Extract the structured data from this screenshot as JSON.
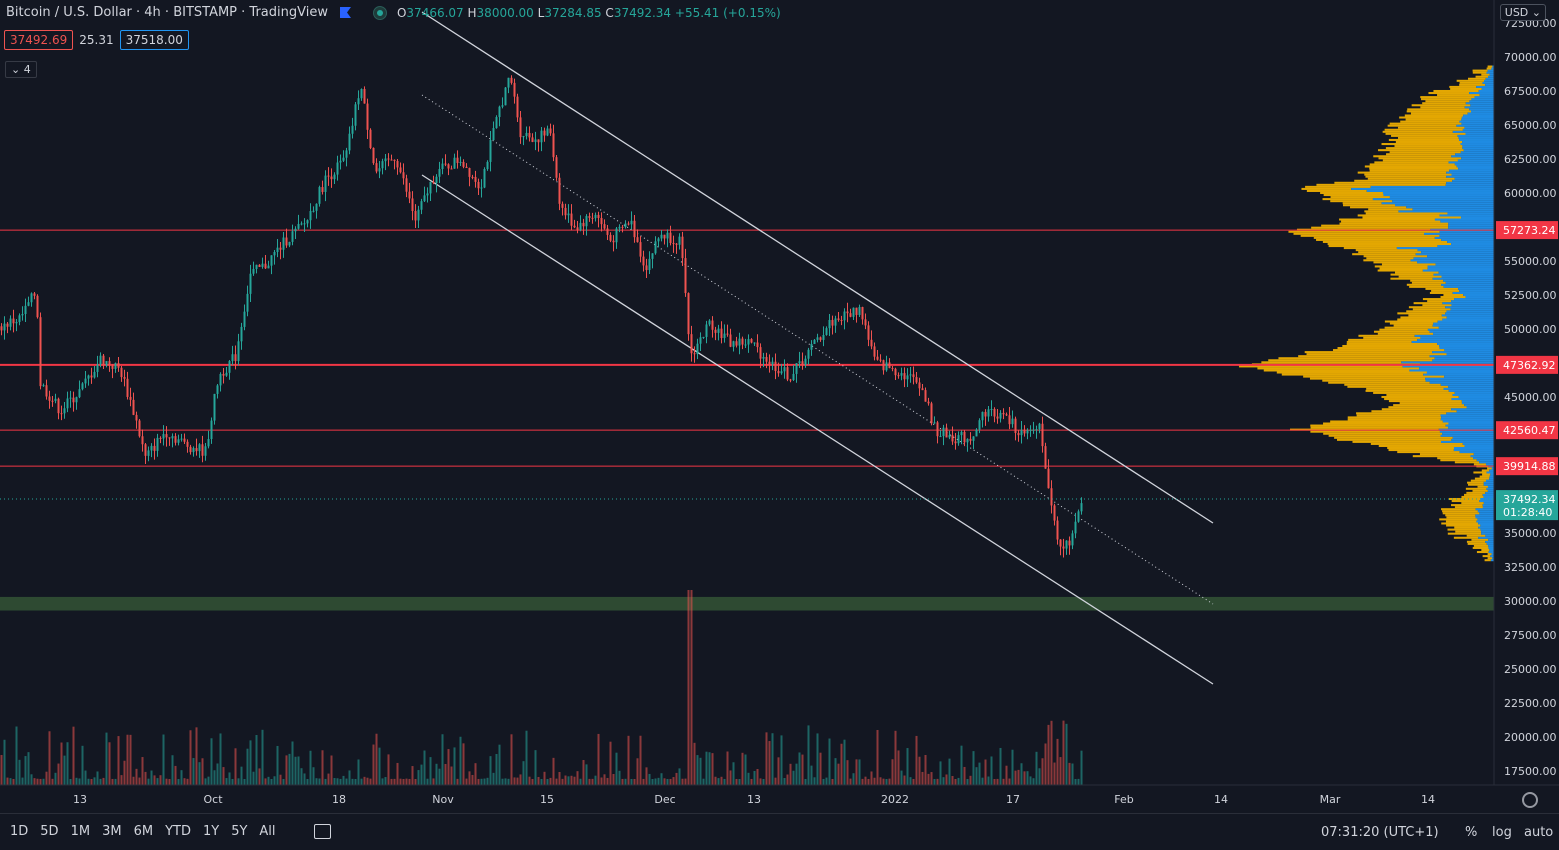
{
  "header": {
    "title": "Bitcoin / U.S. Dollar · 4h · BITSTAMP · TradingView",
    "ohlc": {
      "o_label": "O",
      "o": "37466.07",
      "h_label": "H",
      "h": "38000.00",
      "l_label": "L",
      "l": "37284.85",
      "c_label": "C",
      "c": "37492.34",
      "change": "+55.41 (+0.15%)"
    },
    "sell_price": "37492.69",
    "spread": "25.31",
    "buy_price": "37518.00",
    "collapse_label": "4"
  },
  "currency_button": "USD",
  "colors": {
    "bg": "#131722",
    "up": "#26a69a",
    "down": "#ef5350",
    "hline": "#f23645",
    "channel": "#d1d4dc",
    "vp_yellow": "#f5b400",
    "vp_blue": "#2196f3",
    "zone": "#2e4a32"
  },
  "chart_data": {
    "type": "candlestick",
    "symbol": "Bitcoin / U.S. Dollar",
    "interval": "4h",
    "price_axis": {
      "ticks": [
        "72500.00",
        "70000.00",
        "67500.00",
        "65000.00",
        "62500.00",
        "60000.00",
        "55000.00",
        "52500.00",
        "50000.00",
        "45000.00",
        "35000.00",
        "32500.00",
        "30000.00",
        "27500.00",
        "25000.00",
        "22500.00",
        "20000.00",
        "17500.00"
      ],
      "range": [
        16500,
        73000
      ]
    },
    "time_axis": {
      "ticks": [
        "13",
        "Oct",
        "18",
        "Nov",
        "15",
        "Dec",
        "13",
        "2022",
        "17",
        "Feb",
        "14",
        "Mar",
        "14"
      ]
    },
    "horizontal_lines": [
      {
        "label": "57273.24",
        "price": 57273.24
      },
      {
        "label": "47362.92",
        "price": 47362.92
      },
      {
        "label": "42560.47",
        "price": 42560.47
      },
      {
        "label": "39914.88",
        "price": 39914.88
      }
    ],
    "last_price": {
      "label": "37492.34",
      "countdown": "01:28:40",
      "price": 37492.34
    },
    "support_zone": [
      29300,
      30300
    ],
    "price_path": [
      [
        0,
        50200
      ],
      [
        20,
        50800
      ],
      [
        36,
        52800
      ],
      [
        40,
        46000
      ],
      [
        60,
        44000
      ],
      [
        80,
        45500
      ],
      [
        100,
        47800
      ],
      [
        120,
        47000
      ],
      [
        135,
        43500
      ],
      [
        145,
        40500
      ],
      [
        165,
        42500
      ],
      [
        185,
        41500
      ],
      [
        205,
        41000
      ],
      [
        218,
        46500
      ],
      [
        235,
        48000
      ],
      [
        250,
        54000
      ],
      [
        265,
        54700
      ],
      [
        285,
        56500
      ],
      [
        305,
        57800
      ],
      [
        325,
        61000
      ],
      [
        345,
        62500
      ],
      [
        360,
        68000
      ],
      [
        375,
        61500
      ],
      [
        395,
        62700
      ],
      [
        415,
        58000
      ],
      [
        435,
        61500
      ],
      [
        460,
        62500
      ],
      [
        480,
        60500
      ],
      [
        500,
        66500
      ],
      [
        510,
        68500
      ],
      [
        520,
        64500
      ],
      [
        535,
        64000
      ],
      [
        550,
        64500
      ],
      [
        560,
        59000
      ],
      [
        575,
        57500
      ],
      [
        595,
        58500
      ],
      [
        610,
        56500
      ],
      [
        630,
        58000
      ],
      [
        645,
        54500
      ],
      [
        660,
        57000
      ],
      [
        680,
        56500
      ],
      [
        690,
        48000
      ],
      [
        710,
        50500
      ],
      [
        730,
        49000
      ],
      [
        750,
        49000
      ],
      [
        770,
        47500
      ],
      [
        790,
        46500
      ],
      [
        810,
        48500
      ],
      [
        830,
        50500
      ],
      [
        845,
        51000
      ],
      [
        860,
        51500
      ],
      [
        875,
        47500
      ],
      [
        895,
        47000
      ],
      [
        920,
        46000
      ],
      [
        935,
        42500
      ],
      [
        955,
        42000
      ],
      [
        970,
        42000
      ],
      [
        985,
        44000
      ],
      [
        1005,
        43500
      ],
      [
        1025,
        42000
      ],
      [
        1040,
        43000
      ],
      [
        1048,
        38000
      ],
      [
        1058,
        34500
      ],
      [
        1070,
        34000
      ],
      [
        1082,
        37500
      ]
    ],
    "channel": {
      "upper": [
        [
          422,
          12
        ],
        [
          1213,
          523
        ]
      ],
      "middle": [
        [
          422,
          95
        ],
        [
          1213,
          604
        ]
      ],
      "lower": [
        [
          422,
          175
        ],
        [
          1213,
          684
        ]
      ]
    },
    "volume_profile": "visible range, yellow (up volume) and blue (down volume) histogram on right side"
  },
  "bottom_bar": {
    "ranges": [
      "1D",
      "5D",
      "1M",
      "3M",
      "6M",
      "YTD",
      "1Y",
      "5Y",
      "All"
    ],
    "time": "07:31:20 (UTC+1)",
    "percent": "%",
    "log": "log",
    "auto": "auto"
  }
}
